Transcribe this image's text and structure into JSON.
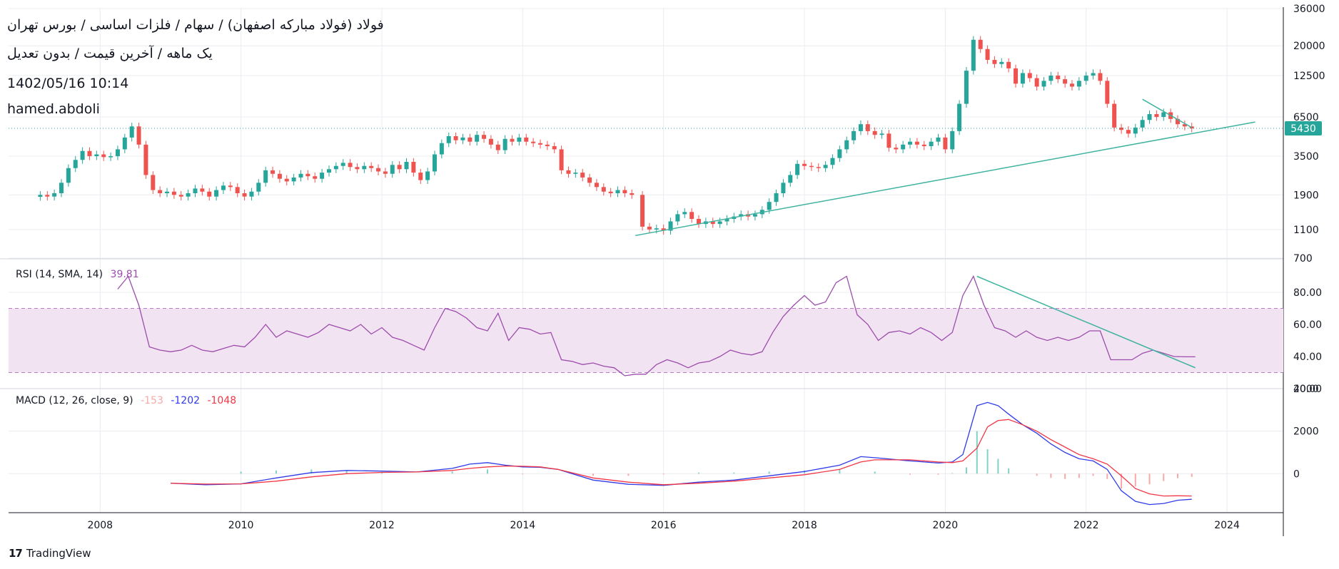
{
  "header": {
    "title": "فولاد (فولاد مبارکه اصفهان) / سهام / فلزات اساسی / بورس تهران",
    "subtitle": "یک ماهه / آخرین قیمت / بدون تعدیل",
    "timestamp": "1402/05/16 10:14",
    "author": "hamed.abdoli"
  },
  "branding": {
    "name": "TradingView",
    "logo_icon": "tradingview-logo-icon"
  },
  "colors": {
    "up": "#26a69a",
    "down": "#ef5350",
    "rsi_line": "#9c4dac",
    "rsi_band": "#f2e3f2",
    "macd_line": "#2f3be8",
    "signal_line": "#f23645",
    "trendline": "#3fb39f",
    "price_badge": "#26a69a",
    "grid": "#e9ecf1",
    "axis_text": "#131722"
  },
  "chart_data": [
    {
      "panel": "price",
      "type": "candlestick",
      "scale": "log",
      "y_ticks": [
        700,
        1100,
        1900,
        3500,
        6500,
        12500,
        20000,
        36000
      ],
      "ylim": [
        700,
        36000
      ],
      "x_ticks": [
        "2008",
        "2010",
        "2012",
        "2014",
        "2016",
        "2018",
        "2020",
        "2022",
        "2024"
      ],
      "xlim": [
        2006.7,
        2024.8
      ],
      "last_price": 5430,
      "last_price_label": "5430",
      "series": [
        {
          "x": 2007.15,
          "c": 1900
        },
        {
          "x": 2007.25,
          "c": 1850
        },
        {
          "x": 2007.35,
          "c": 1950
        },
        {
          "x": 2007.45,
          "c": 2300
        },
        {
          "x": 2007.55,
          "c": 2900
        },
        {
          "x": 2007.65,
          "c": 3300
        },
        {
          "x": 2007.75,
          "c": 3800
        },
        {
          "x": 2007.85,
          "c": 3500
        },
        {
          "x": 2007.95,
          "c": 3600
        },
        {
          "x": 2008.05,
          "c": 3450
        },
        {
          "x": 2008.15,
          "c": 3500
        },
        {
          "x": 2008.25,
          "c": 3900
        },
        {
          "x": 2008.35,
          "c": 4700
        },
        {
          "x": 2008.45,
          "c": 5600
        },
        {
          "x": 2008.55,
          "c": 4200
        },
        {
          "x": 2008.65,
          "c": 2600
        },
        {
          "x": 2008.75,
          "c": 2050
        },
        {
          "x": 2008.85,
          "c": 1950
        },
        {
          "x": 2008.95,
          "c": 2000
        },
        {
          "x": 2009.05,
          "c": 1900
        },
        {
          "x": 2009.15,
          "c": 1850
        },
        {
          "x": 2009.25,
          "c": 1950
        },
        {
          "x": 2009.35,
          "c": 2100
        },
        {
          "x": 2009.45,
          "c": 2000
        },
        {
          "x": 2009.55,
          "c": 1850
        },
        {
          "x": 2009.65,
          "c": 2050
        },
        {
          "x": 2009.75,
          "c": 2200
        },
        {
          "x": 2009.85,
          "c": 2150
        },
        {
          "x": 2009.95,
          "c": 1950
        },
        {
          "x": 2010.05,
          "c": 1850
        },
        {
          "x": 2010.15,
          "c": 2000
        },
        {
          "x": 2010.25,
          "c": 2300
        },
        {
          "x": 2010.35,
          "c": 2800
        },
        {
          "x": 2010.45,
          "c": 2650
        },
        {
          "x": 2010.55,
          "c": 2450
        },
        {
          "x": 2010.65,
          "c": 2350
        },
        {
          "x": 2010.75,
          "c": 2500
        },
        {
          "x": 2010.85,
          "c": 2650
        },
        {
          "x": 2010.95,
          "c": 2550
        },
        {
          "x": 2011.05,
          "c": 2450
        },
        {
          "x": 2011.15,
          "c": 2700
        },
        {
          "x": 2011.25,
          "c": 2850
        },
        {
          "x": 2011.35,
          "c": 3000
        },
        {
          "x": 2011.45,
          "c": 3150
        },
        {
          "x": 2011.55,
          "c": 2950
        },
        {
          "x": 2011.65,
          "c": 2850
        },
        {
          "x": 2011.75,
          "c": 3000
        },
        {
          "x": 2011.85,
          "c": 2900
        },
        {
          "x": 2011.95,
          "c": 2750
        },
        {
          "x": 2012.05,
          "c": 2650
        },
        {
          "x": 2012.15,
          "c": 3050
        },
        {
          "x": 2012.25,
          "c": 2850
        },
        {
          "x": 2012.35,
          "c": 3200
        },
        {
          "x": 2012.45,
          "c": 2700
        },
        {
          "x": 2012.55,
          "c": 2400
        },
        {
          "x": 2012.65,
          "c": 2750
        },
        {
          "x": 2012.75,
          "c": 3600
        },
        {
          "x": 2012.85,
          "c": 4300
        },
        {
          "x": 2012.95,
          "c": 4800
        },
        {
          "x": 2013.05,
          "c": 4500
        },
        {
          "x": 2013.15,
          "c": 4700
        },
        {
          "x": 2013.25,
          "c": 4400
        },
        {
          "x": 2013.35,
          "c": 4900
        },
        {
          "x": 2013.45,
          "c": 4600
        },
        {
          "x": 2013.55,
          "c": 4200
        },
        {
          "x": 2013.65,
          "c": 3850
        },
        {
          "x": 2013.75,
          "c": 4600
        },
        {
          "x": 2013.85,
          "c": 4400
        },
        {
          "x": 2013.95,
          "c": 4700
        },
        {
          "x": 2014.05,
          "c": 4400
        },
        {
          "x": 2014.15,
          "c": 4300
        },
        {
          "x": 2014.25,
          "c": 4200
        },
        {
          "x": 2014.35,
          "c": 4100
        },
        {
          "x": 2014.45,
          "c": 3900
        },
        {
          "x": 2014.55,
          "c": 2800
        },
        {
          "x": 2014.65,
          "c": 2650
        },
        {
          "x": 2014.75,
          "c": 2700
        },
        {
          "x": 2014.85,
          "c": 2500
        },
        {
          "x": 2014.95,
          "c": 2300
        },
        {
          "x": 2015.05,
          "c": 2150
        },
        {
          "x": 2015.15,
          "c": 2000
        },
        {
          "x": 2015.25,
          "c": 1950
        },
        {
          "x": 2015.35,
          "c": 2050
        },
        {
          "x": 2015.45,
          "c": 1950
        },
        {
          "x": 2015.55,
          "c": 1900
        },
        {
          "x": 2015.7,
          "c": 1150
        },
        {
          "x": 2015.8,
          "c": 1100
        },
        {
          "x": 2015.9,
          "c": 1120
        },
        {
          "x": 2016.0,
          "c": 1080
        },
        {
          "x": 2016.1,
          "c": 1250
        },
        {
          "x": 2016.2,
          "c": 1400
        },
        {
          "x": 2016.3,
          "c": 1450
        },
        {
          "x": 2016.4,
          "c": 1300
        },
        {
          "x": 2016.5,
          "c": 1200
        },
        {
          "x": 2016.6,
          "c": 1250
        },
        {
          "x": 2016.7,
          "c": 1200
        },
        {
          "x": 2016.8,
          "c": 1250
        },
        {
          "x": 2016.9,
          "c": 1300
        },
        {
          "x": 2017.0,
          "c": 1350
        },
        {
          "x": 2017.1,
          "c": 1400
        },
        {
          "x": 2017.2,
          "c": 1350
        },
        {
          "x": 2017.3,
          "c": 1400
        },
        {
          "x": 2017.4,
          "c": 1500
        },
        {
          "x": 2017.5,
          "c": 1700
        },
        {
          "x": 2017.6,
          "c": 1950
        },
        {
          "x": 2017.7,
          "c": 2300
        },
        {
          "x": 2017.8,
          "c": 2600
        },
        {
          "x": 2017.9,
          "c": 3100
        },
        {
          "x": 2018.0,
          "c": 3000
        },
        {
          "x": 2018.1,
          "c": 2950
        },
        {
          "x": 2018.2,
          "c": 2900
        },
        {
          "x": 2018.3,
          "c": 3050
        },
        {
          "x": 2018.4,
          "c": 3400
        },
        {
          "x": 2018.5,
          "c": 3900
        },
        {
          "x": 2018.6,
          "c": 4500
        },
        {
          "x": 2018.7,
          "c": 5200
        },
        {
          "x": 2018.8,
          "c": 5800
        },
        {
          "x": 2018.9,
          "c": 5200
        },
        {
          "x": 2019.0,
          "c": 4900
        },
        {
          "x": 2019.1,
          "c": 5000
        },
        {
          "x": 2019.2,
          "c": 4000
        },
        {
          "x": 2019.3,
          "c": 3900
        },
        {
          "x": 2019.4,
          "c": 4200
        },
        {
          "x": 2019.5,
          "c": 4400
        },
        {
          "x": 2019.6,
          "c": 4200
        },
        {
          "x": 2019.7,
          "c": 4100
        },
        {
          "x": 2019.8,
          "c": 4400
        },
        {
          "x": 2019.9,
          "c": 4700
        },
        {
          "x": 2020.0,
          "c": 3900
        },
        {
          "x": 2020.1,
          "c": 5200
        },
        {
          "x": 2020.2,
          "c": 8000
        },
        {
          "x": 2020.3,
          "c": 13500
        },
        {
          "x": 2020.4,
          "c": 22000
        },
        {
          "x": 2020.5,
          "c": 19000
        },
        {
          "x": 2020.6,
          "c": 16000
        },
        {
          "x": 2020.7,
          "c": 15000
        },
        {
          "x": 2020.8,
          "c": 15500
        },
        {
          "x": 2020.9,
          "c": 14000
        },
        {
          "x": 2021.0,
          "c": 11000
        },
        {
          "x": 2021.1,
          "c": 13000
        },
        {
          "x": 2021.2,
          "c": 12000
        },
        {
          "x": 2021.3,
          "c": 10500
        },
        {
          "x": 2021.4,
          "c": 11500
        },
        {
          "x": 2021.5,
          "c": 12500
        },
        {
          "x": 2021.6,
          "c": 11800
        },
        {
          "x": 2021.7,
          "c": 11000
        },
        {
          "x": 2021.8,
          "c": 10500
        },
        {
          "x": 2021.9,
          "c": 11500
        },
        {
          "x": 2022.0,
          "c": 12500
        },
        {
          "x": 2022.1,
          "c": 13000
        },
        {
          "x": 2022.2,
          "c": 11500
        },
        {
          "x": 2022.3,
          "c": 8000
        },
        {
          "x": 2022.4,
          "c": 5500
        },
        {
          "x": 2022.5,
          "c": 5300
        },
        {
          "x": 2022.6,
          "c": 5000
        },
        {
          "x": 2022.7,
          "c": 5500
        },
        {
          "x": 2022.8,
          "c": 6200
        },
        {
          "x": 2022.9,
          "c": 6800
        },
        {
          "x": 2023.0,
          "c": 6500
        },
        {
          "x": 2023.1,
          "c": 7000
        },
        {
          "x": 2023.2,
          "c": 6300
        },
        {
          "x": 2023.3,
          "c": 5800
        },
        {
          "x": 2023.4,
          "c": 5600
        },
        {
          "x": 2023.5,
          "c": 5430
        }
      ],
      "trendlines": [
        {
          "x1": 2015.6,
          "y1": 1000,
          "x2": 2024.4,
          "y2": 6000
        },
        {
          "x1": 2022.8,
          "y1": 8600,
          "x2": 2023.5,
          "y2": 5500
        }
      ]
    },
    {
      "panel": "rsi",
      "type": "line",
      "label": "RSI (14, SMA, 14)",
      "value_label": "39.81",
      "y_ticks": [
        20,
        40,
        60,
        80
      ],
      "y_tick_labels": [
        "20.00",
        "40.00",
        "60.00",
        "80.00"
      ],
      "ylim": [
        20,
        100
      ],
      "band": [
        30,
        70
      ],
      "x": [
        2008.25,
        2008.4,
        2008.55,
        2008.7,
        2008.85,
        2009.0,
        2009.15,
        2009.3,
        2009.45,
        2009.6,
        2009.75,
        2009.9,
        2010.05,
        2010.2,
        2010.35,
        2010.5,
        2010.65,
        2010.8,
        2010.95,
        2011.1,
        2011.25,
        2011.4,
        2011.55,
        2011.7,
        2011.85,
        2012.0,
        2012.15,
        2012.3,
        2012.45,
        2012.6,
        2012.75,
        2012.9,
        2013.05,
        2013.2,
        2013.35,
        2013.5,
        2013.65,
        2013.8,
        2013.95,
        2014.1,
        2014.25,
        2014.4,
        2014.55,
        2014.7,
        2014.85,
        2015.0,
        2015.15,
        2015.3,
        2015.45,
        2015.6,
        2015.75,
        2015.9,
        2016.05,
        2016.2,
        2016.35,
        2016.5,
        2016.65,
        2016.8,
        2016.95,
        2017.1,
        2017.25,
        2017.4,
        2017.55,
        2017.7,
        2017.85,
        2018.0,
        2018.15,
        2018.3,
        2018.45,
        2018.6,
        2018.75,
        2018.9,
        2019.05,
        2019.2,
        2019.35,
        2019.5,
        2019.65,
        2019.8,
        2019.95,
        2020.1,
        2020.25,
        2020.4,
        2020.55,
        2020.7,
        2020.85,
        2021.0,
        2021.15,
        2021.3,
        2021.45,
        2021.6,
        2021.75,
        2021.9,
        2022.05,
        2022.2,
        2022.35,
        2022.5,
        2022.65,
        2022.8,
        2022.95,
        2023.1,
        2023.25,
        2023.4,
        2023.55
      ],
      "values": [
        82,
        90,
        72,
        46,
        44,
        43,
        44,
        47,
        44,
        43,
        45,
        47,
        46,
        52,
        60,
        52,
        56,
        54,
        52,
        55,
        60,
        58,
        56,
        60,
        54,
        58,
        52,
        50,
        47,
        44,
        58,
        70,
        68,
        64,
        58,
        56,
        67,
        50,
        58,
        57,
        54,
        55,
        38,
        37,
        35,
        36,
        34,
        33,
        28,
        29,
        29,
        35,
        38,
        36,
        33,
        36,
        37,
        40,
        44,
        42,
        41,
        43,
        55,
        65,
        72,
        78,
        72,
        74,
        86,
        90,
        66,
        60,
        50,
        55,
        56,
        54,
        58,
        55,
        50,
        55,
        78,
        90,
        72,
        58,
        56,
        52,
        56,
        52,
        50,
        52,
        50,
        52,
        56,
        56,
        38,
        38,
        38,
        42,
        44,
        42,
        40,
        39.81,
        39.81
      ],
      "trendline": {
        "x1": 2020.45,
        "y1": 90,
        "x2": 2023.55,
        "y2": 33
      }
    },
    {
      "panel": "macd",
      "type": "line",
      "label": "MACD (12, 26, close, 9)",
      "value_labels": [
        "-153",
        "-1202",
        "-1048"
      ],
      "y_ticks": [
        0,
        2000,
        4000
      ],
      "y_tick_labels": [
        "0",
        "2000",
        "4000"
      ],
      "ylim": [
        -1800,
        4000
      ],
      "x": [
        2009.0,
        2009.5,
        2010.0,
        2010.5,
        2011.0,
        2011.5,
        2012.0,
        2012.5,
        2013.0,
        2013.25,
        2013.5,
        2013.75,
        2014.0,
        2014.25,
        2014.5,
        2015.0,
        2015.5,
        2016.0,
        2016.5,
        2017.0,
        2017.5,
        2018.0,
        2018.5,
        2018.8,
        2019.0,
        2019.5,
        2019.9,
        2020.1,
        2020.25,
        2020.45,
        2020.6,
        2020.75,
        2020.9,
        2021.1,
        2021.3,
        2021.5,
        2021.7,
        2021.9,
        2022.1,
        2022.3,
        2022.5,
        2022.7,
        2022.9,
        2023.1,
        2023.3,
        2023.5
      ],
      "macd": [
        -450,
        -520,
        -480,
        -200,
        50,
        150,
        120,
        80,
        250,
        450,
        520,
        400,
        320,
        300,
        200,
        -300,
        -500,
        -550,
        -400,
        -300,
        -100,
        100,
        400,
        800,
        750,
        600,
        500,
        550,
        900,
        3200,
        3350,
        3200,
        2800,
        2300,
        1900,
        1400,
        1000,
        700,
        600,
        200,
        -800,
        -1300,
        -1450,
        -1400,
        -1250,
        -1202
      ],
      "signal": [
        -450,
        -490,
        -480,
        -350,
        -150,
        0,
        60,
        80,
        150,
        250,
        320,
        360,
        350,
        320,
        200,
        -200,
        -400,
        -520,
        -450,
        -350,
        -200,
        -50,
        200,
        550,
        650,
        650,
        550,
        520,
        600,
        1200,
        2200,
        2500,
        2550,
        2300,
        2000,
        1600,
        1250,
        900,
        700,
        450,
        -100,
        -700,
        -950,
        -1050,
        -1040,
        -1048
      ],
      "histogram_x": [
        2010.0,
        2010.5,
        2011.0,
        2011.5,
        2012.0,
        2012.5,
        2013.0,
        2013.5,
        2014.0,
        2014.5,
        2015.0,
        2015.5,
        2016.0,
        2016.5,
        2017.0,
        2017.5,
        2018.0,
        2018.5,
        2019.0,
        2019.5,
        2019.9,
        2020.1,
        2020.3,
        2020.45,
        2020.6,
        2020.75,
        2020.9,
        2021.1,
        2021.3,
        2021.5,
        2021.7,
        2021.9,
        2022.1,
        2022.3,
        2022.5,
        2022.7,
        2022.9,
        2023.1,
        2023.3,
        2023.5
      ],
      "histogram": [
        100,
        150,
        200,
        150,
        60,
        0,
        100,
        200,
        -30,
        0,
        -100,
        -100,
        -30,
        50,
        50,
        100,
        150,
        200,
        100,
        -50,
        -50,
        30,
        300,
        2000,
        1150,
        700,
        250,
        0,
        -100,
        -200,
        -250,
        -200,
        -100,
        -250,
        -700,
        -600,
        -500,
        -350,
        -210,
        -153
      ]
    }
  ]
}
